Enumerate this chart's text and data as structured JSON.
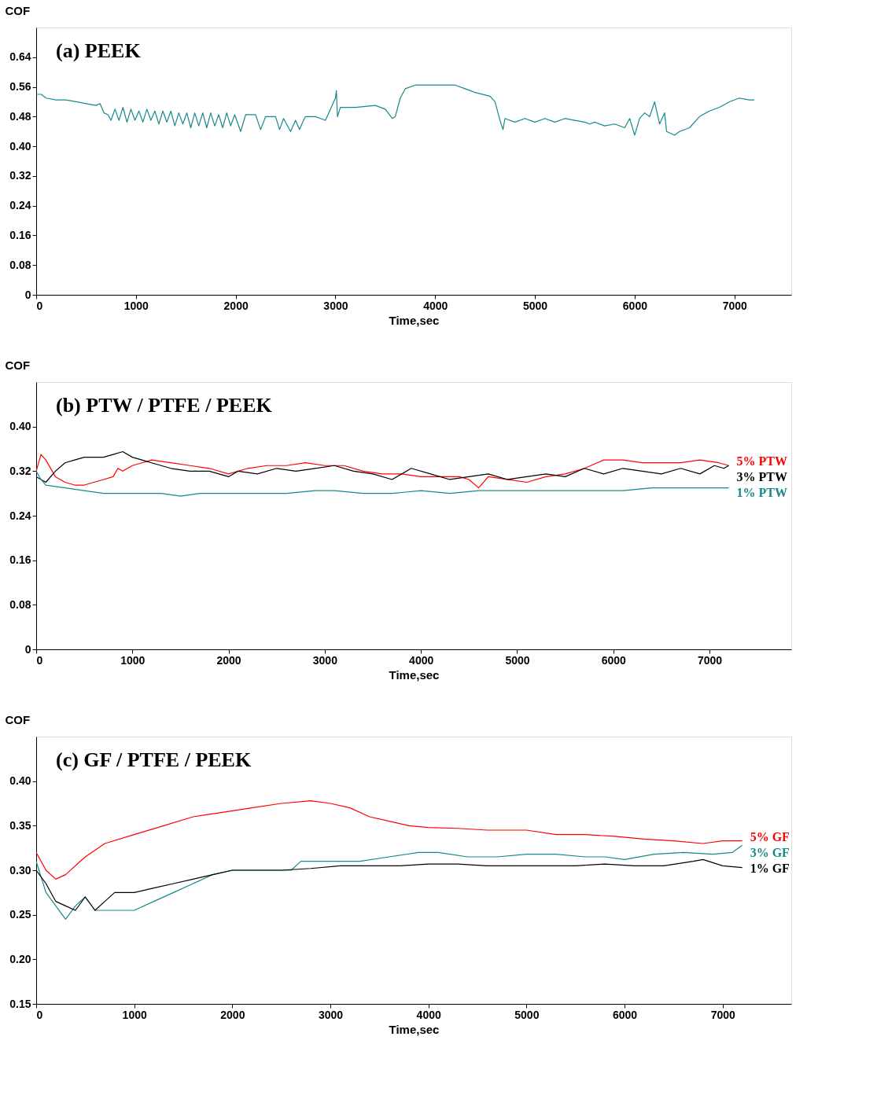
{
  "chart_data": [
    {
      "type": "line",
      "title": "(a) PEEK",
      "xlabel": "Time,sec",
      "ylabel": "COF",
      "xlim": [
        0,
        7570
      ],
      "xticks": [
        0,
        1000,
        2000,
        3000,
        4000,
        5000,
        6000,
        7000
      ],
      "ylim": [
        0,
        0.72
      ],
      "yticks": [
        0,
        0.08,
        0.16,
        0.24,
        0.32,
        {
          "value": 0.4,
          "label": "0.40"
        },
        0.48,
        0.56,
        0.64
      ],
      "grid": false,
      "legend": false,
      "x": [
        0,
        50,
        100,
        200,
        300,
        400,
        500,
        600,
        640,
        680,
        720,
        750,
        790,
        830,
        870,
        910,
        950,
        990,
        1030,
        1070,
        1110,
        1150,
        1190,
        1230,
        1270,
        1310,
        1350,
        1390,
        1430,
        1470,
        1510,
        1550,
        1590,
        1630,
        1670,
        1710,
        1750,
        1790,
        1830,
        1870,
        1910,
        1950,
        1990,
        2050,
        2100,
        2200,
        2250,
        2300,
        2400,
        2440,
        2480,
        2550,
        2600,
        2640,
        2680,
        2700,
        2800,
        2900,
        2950,
        3000,
        3010,
        3020,
        3050,
        3200,
        3400,
        3500,
        3570,
        3600,
        3650,
        3700,
        3800,
        4000,
        4200,
        4300,
        4400,
        4550,
        4600,
        4650,
        4680,
        4700,
        4800,
        4900,
        5000,
        5100,
        5200,
        5300,
        5400,
        5500,
        5550,
        5600,
        5700,
        5800,
        5900,
        5950,
        6000,
        6050,
        6100,
        6150,
        6200,
        6250,
        6300,
        6320,
        6400,
        6450,
        6550,
        6650,
        6750,
        6850,
        6950,
        7050,
        7150,
        7200
      ],
      "series": [
        {
          "color": "#17898a",
          "values": [
            0.54,
            0.54,
            0.53,
            0.525,
            0.525,
            0.52,
            0.515,
            0.51,
            0.515,
            0.49,
            0.485,
            0.47,
            0.5,
            0.47,
            0.505,
            0.465,
            0.5,
            0.47,
            0.495,
            0.465,
            0.5,
            0.47,
            0.495,
            0.46,
            0.495,
            0.465,
            0.495,
            0.455,
            0.49,
            0.46,
            0.49,
            0.45,
            0.49,
            0.455,
            0.49,
            0.45,
            0.49,
            0.455,
            0.485,
            0.45,
            0.49,
            0.455,
            0.485,
            0.44,
            0.485,
            0.485,
            0.445,
            0.48,
            0.48,
            0.445,
            0.475,
            0.44,
            0.47,
            0.445,
            0.47,
            0.48,
            0.48,
            0.47,
            0.5,
            0.53,
            0.55,
            0.48,
            0.505,
            0.505,
            0.51,
            0.5,
            0.475,
            0.48,
            0.53,
            0.555,
            0.565,
            0.565,
            0.565,
            0.555,
            0.545,
            0.535,
            0.52,
            0.47,
            0.445,
            0.475,
            0.465,
            0.475,
            0.465,
            0.475,
            0.465,
            0.475,
            0.47,
            0.465,
            0.46,
            0.465,
            0.455,
            0.46,
            0.45,
            0.475,
            0.43,
            0.475,
            0.49,
            0.48,
            0.52,
            0.46,
            0.49,
            0.44,
            0.43,
            0.44,
            0.45,
            0.48,
            0.495,
            0.505,
            0.52,
            0.53,
            0.525,
            0.525
          ]
        }
      ]
    },
    {
      "type": "line",
      "title": "(b) PTW / PTFE / PEEK",
      "xlabel": "Time,sec",
      "ylabel": "COF",
      "xlim": [
        0,
        7850
      ],
      "xticks": [
        0,
        1000,
        2000,
        3000,
        4000,
        5000,
        6000,
        7000
      ],
      "ylim": [
        0,
        0.48
      ],
      "yticks": [
        0,
        0.08,
        0.16,
        0.24,
        0.32,
        {
          "value": 0.4,
          "label": "0.40"
        }
      ],
      "grid": false,
      "legend": false,
      "series": [
        {
          "name": "5% PTW",
          "color": "#ff0000",
          "x": [
            0,
            50,
            100,
            200,
            300,
            400,
            500,
            600,
            700,
            800,
            850,
            900,
            1000,
            1100,
            1200,
            1400,
            1600,
            1800,
            2000,
            2200,
            2400,
            2600,
            2800,
            3000,
            3200,
            3400,
            3600,
            3800,
            4000,
            4200,
            4400,
            4500,
            4600,
            4700,
            4900,
            5100,
            5300,
            5500,
            5700,
            5900,
            6100,
            6300,
            6500,
            6700,
            6900,
            7100,
            7200
          ],
          "values": [
            0.32,
            0.35,
            0.34,
            0.31,
            0.3,
            0.295,
            0.295,
            0.3,
            0.305,
            0.31,
            0.325,
            0.32,
            0.33,
            0.335,
            0.34,
            0.335,
            0.33,
            0.325,
            0.315,
            0.325,
            0.33,
            0.33,
            0.335,
            0.33,
            0.33,
            0.32,
            0.315,
            0.315,
            0.31,
            0.31,
            0.31,
            0.305,
            0.29,
            0.31,
            0.305,
            0.3,
            0.31,
            0.315,
            0.325,
            0.34,
            0.34,
            0.335,
            0.335,
            0.335,
            0.34,
            0.335,
            0.33
          ]
        },
        {
          "name": "3% PTW",
          "color": "#000000",
          "x": [
            0,
            100,
            200,
            300,
            400,
            500,
            600,
            700,
            800,
            900,
            1000,
            1100,
            1200,
            1400,
            1600,
            1800,
            2000,
            2100,
            2300,
            2500,
            2700,
            2900,
            3100,
            3300,
            3500,
            3700,
            3900,
            4100,
            4300,
            4500,
            4700,
            4900,
            5100,
            5300,
            5500,
            5700,
            5900,
            6100,
            6300,
            6500,
            6700,
            6900,
            7050,
            7150,
            7200
          ],
          "values": [
            0.31,
            0.3,
            0.32,
            0.335,
            0.34,
            0.345,
            0.345,
            0.345,
            0.35,
            0.355,
            0.345,
            0.34,
            0.335,
            0.325,
            0.32,
            0.32,
            0.31,
            0.32,
            0.315,
            0.325,
            0.32,
            0.325,
            0.33,
            0.32,
            0.315,
            0.305,
            0.325,
            0.315,
            0.305,
            0.31,
            0.315,
            0.305,
            0.31,
            0.315,
            0.31,
            0.325,
            0.315,
            0.325,
            0.32,
            0.315,
            0.325,
            0.315,
            0.33,
            0.325,
            0.33
          ]
        },
        {
          "name": "1% PTW",
          "color": "#17898a",
          "x": [
            0,
            50,
            100,
            300,
            500,
            700,
            1000,
            1300,
            1500,
            1700,
            2000,
            2300,
            2600,
            2900,
            3100,
            3400,
            3700,
            4000,
            4300,
            4600,
            4900,
            5200,
            5500,
            5800,
            6100,
            6400,
            6600,
            6800,
            7000,
            7200
          ],
          "values": [
            0.32,
            0.305,
            0.295,
            0.29,
            0.285,
            0.28,
            0.28,
            0.28,
            0.275,
            0.28,
            0.28,
            0.28,
            0.28,
            0.285,
            0.285,
            0.28,
            0.28,
            0.285,
            0.28,
            0.285,
            0.285,
            0.285,
            0.285,
            0.285,
            0.285,
            0.29,
            0.29,
            0.29,
            0.29,
            0.29
          ]
        }
      ]
    },
    {
      "type": "line",
      "title": "(c) GF / PTFE / PEEK",
      "xlabel": "Time,sec",
      "ylabel": "COF",
      "xlim": [
        0,
        7700
      ],
      "xticks": [
        0,
        1000,
        2000,
        3000,
        4000,
        5000,
        6000,
        7000
      ],
      "ylim": [
        0.15,
        0.45
      ],
      "yticks": [
        0.15,
        {
          "value": 0.2,
          "label": "0.20"
        },
        0.25,
        {
          "value": 0.3,
          "label": "0.30"
        },
        0.35,
        {
          "value": 0.4,
          "label": "0.40"
        }
      ],
      "grid": false,
      "legend": false,
      "series": [
        {
          "name": "5% GF",
          "color": "#ff0000",
          "x": [
            0,
            100,
            200,
            300,
            500,
            700,
            1000,
            1300,
            1600,
            1900,
            2200,
            2500,
            2800,
            3000,
            3200,
            3400,
            3600,
            3800,
            4000,
            4300,
            4600,
            5000,
            5300,
            5600,
            5900,
            6200,
            6500,
            6800,
            7000,
            7200
          ],
          "values": [
            0.32,
            0.3,
            0.29,
            0.295,
            0.315,
            0.33,
            0.34,
            0.35,
            0.36,
            0.365,
            0.37,
            0.375,
            0.378,
            0.375,
            0.37,
            0.36,
            0.355,
            0.35,
            0.348,
            0.347,
            0.345,
            0.345,
            0.34,
            0.34,
            0.338,
            0.335,
            0.333,
            0.33,
            0.333,
            0.333
          ]
        },
        {
          "name": "3% GF",
          "color": "#17898a",
          "x": [
            0,
            100,
            200,
            300,
            400,
            500,
            600,
            800,
            1000,
            1200,
            1400,
            1600,
            1800,
            2000,
            2200,
            2400,
            2600,
            2700,
            2800,
            3000,
            3300,
            3600,
            3900,
            4100,
            4400,
            4700,
            5000,
            5300,
            5600,
            5800,
            6000,
            6300,
            6600,
            6900,
            7100,
            7200
          ],
          "values": [
            0.31,
            0.275,
            0.26,
            0.245,
            0.26,
            0.27,
            0.255,
            0.255,
            0.255,
            0.265,
            0.275,
            0.285,
            0.295,
            0.3,
            0.3,
            0.3,
            0.3,
            0.31,
            0.31,
            0.31,
            0.31,
            0.315,
            0.32,
            0.32,
            0.315,
            0.315,
            0.318,
            0.318,
            0.315,
            0.315,
            0.312,
            0.318,
            0.32,
            0.318,
            0.32,
            0.328
          ]
        },
        {
          "name": "1% GF",
          "color": "#000000",
          "x": [
            0,
            100,
            200,
            300,
            400,
            500,
            600,
            700,
            800,
            1000,
            1200,
            1400,
            1600,
            1800,
            2000,
            2200,
            2500,
            2800,
            3100,
            3400,
            3700,
            4000,
            4300,
            4600,
            4900,
            5200,
            5500,
            5800,
            6100,
            6400,
            6700,
            6800,
            7000,
            7200
          ],
          "values": [
            0.3,
            0.285,
            0.265,
            0.26,
            0.255,
            0.27,
            0.255,
            0.265,
            0.275,
            0.275,
            0.28,
            0.285,
            0.29,
            0.295,
            0.3,
            0.3,
            0.3,
            0.302,
            0.305,
            0.305,
            0.305,
            0.307,
            0.307,
            0.305,
            0.305,
            0.305,
            0.305,
            0.307,
            0.305,
            0.305,
            0.31,
            0.312,
            0.305,
            0.303
          ]
        }
      ]
    }
  ]
}
